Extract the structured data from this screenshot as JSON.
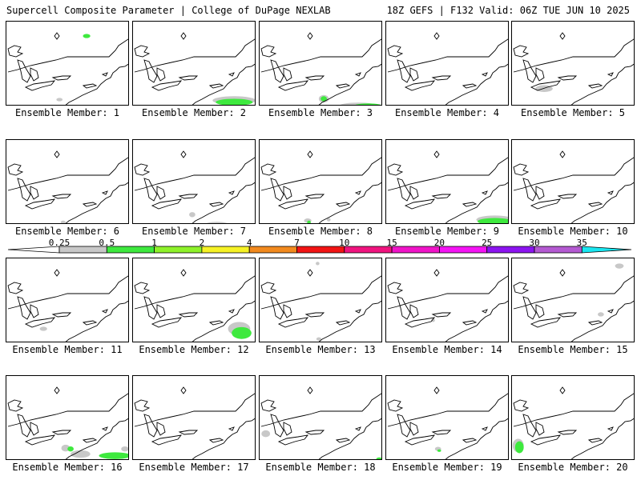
{
  "header": {
    "left": "Supercell Composite Parameter | College of DuPage NEXLAB",
    "right": "18Z GEFS | F132 Valid: 06Z TUE JUN 10 2025"
  },
  "legend": {
    "labels": [
      "0.25",
      "0.5",
      "1",
      "2",
      "4",
      "7",
      "10",
      "15",
      "20",
      "25",
      "30",
      "35"
    ],
    "colors": [
      "#c8c8c8",
      "#3ee93e",
      "#8ef22a",
      "#f6f225",
      "#f28a1e",
      "#f21414",
      "#f0147f",
      "#f014c8",
      "#f514f5",
      "#8c14f0",
      "#b45ad2",
      "#19e6f0"
    ]
  },
  "members": [
    {
      "caption": "Ensemble Member: 1",
      "blobs": [
        [
          "green",
          0.65,
          0.17,
          0.06,
          0.05
        ],
        [
          "gray",
          0.43,
          0.92,
          0.05,
          0.04
        ]
      ]
    },
    {
      "caption": "Ensemble Member: 2",
      "blobs": [
        [
          "gray",
          0.82,
          0.93,
          0.35,
          0.1
        ],
        [
          "green",
          0.82,
          0.95,
          0.3,
          0.08
        ]
      ]
    },
    {
      "caption": "Ensemble Member: 3",
      "blobs": [
        [
          "gray",
          0.52,
          0.91,
          0.08,
          0.09
        ],
        [
          "green",
          0.52,
          0.91,
          0.05,
          0.06
        ],
        [
          "gray",
          0.8,
          0.99,
          0.3,
          0.07
        ],
        [
          "green",
          0.88,
          0.99,
          0.22,
          0.05
        ]
      ]
    },
    {
      "caption": "Ensemble Member: 4",
      "blobs": []
    },
    {
      "caption": "Ensemble Member: 5",
      "blobs": [
        [
          "gray",
          0.26,
          0.79,
          0.14,
          0.08
        ]
      ]
    },
    {
      "caption": "Ensemble Member: 6",
      "blobs": [
        [
          "gray",
          0.46,
          0.97,
          0.04,
          0.04
        ]
      ]
    },
    {
      "caption": "Ensemble Member: 7",
      "blobs": [
        [
          "gray",
          0.48,
          0.88,
          0.05,
          0.06
        ],
        [
          "gray",
          0.68,
          0.99,
          0.18,
          0.05
        ]
      ]
    },
    {
      "caption": "Ensemble Member: 8",
      "blobs": [
        [
          "gray",
          0.39,
          0.95,
          0.06,
          0.05
        ],
        [
          "green",
          0.4,
          0.97,
          0.03,
          0.04
        ],
        [
          "gray",
          0.56,
          0.94,
          0.03,
          0.04
        ]
      ]
    },
    {
      "caption": "Ensemble Member: 9",
      "blobs": [
        [
          "gray",
          0.88,
          0.94,
          0.3,
          0.1
        ],
        [
          "green",
          0.88,
          0.96,
          0.28,
          0.08
        ]
      ]
    },
    {
      "caption": "Ensemble Member: 10",
      "blobs": []
    },
    {
      "caption": "Ensemble Member: 11",
      "blobs": [
        [
          "gray",
          0.3,
          0.83,
          0.06,
          0.05
        ]
      ]
    },
    {
      "caption": "Ensemble Member: 12",
      "blobs": [
        [
          "gray",
          0.86,
          0.83,
          0.18,
          0.16
        ],
        [
          "green",
          0.88,
          0.88,
          0.16,
          0.14
        ]
      ]
    },
    {
      "caption": "Ensemble Member: 13",
      "blobs": [
        [
          "gray",
          0.48,
          0.95,
          0.04,
          0.04
        ],
        [
          "gray",
          0.47,
          0.06,
          0.03,
          0.04
        ]
      ]
    },
    {
      "caption": "Ensemble Member: 14",
      "blobs": [
        [
          "gray",
          0.38,
          0.73,
          0.03,
          0.04
        ]
      ]
    },
    {
      "caption": "Ensemble Member: 15",
      "blobs": [
        [
          "gray",
          0.72,
          0.66,
          0.05,
          0.05
        ],
        [
          "gray",
          0.87,
          0.09,
          0.07,
          0.06
        ]
      ]
    },
    {
      "caption": "Ensemble Member: 16",
      "blobs": [
        [
          "gray",
          0.6,
          0.92,
          0.16,
          0.09
        ],
        [
          "gray",
          0.48,
          0.85,
          0.07,
          0.08
        ],
        [
          "green",
          0.52,
          0.86,
          0.05,
          0.06
        ],
        [
          "green",
          0.88,
          0.94,
          0.26,
          0.08
        ],
        [
          "gray",
          0.96,
          0.86,
          0.06,
          0.06
        ]
      ]
    },
    {
      "caption": "Ensemble Member: 17",
      "blobs": []
    },
    {
      "caption": "Ensemble Member: 18",
      "blobs": [
        [
          "green",
          0.05,
          0.68,
          0.05,
          0.06
        ],
        [
          "gray",
          0.05,
          0.68,
          0.07,
          0.08
        ],
        [
          "green",
          0.97,
          0.98,
          0.05,
          0.04
        ]
      ]
    },
    {
      "caption": "Ensemble Member: 19",
      "blobs": [
        [
          "gray",
          0.42,
          0.86,
          0.05,
          0.05
        ],
        [
          "green",
          0.43,
          0.88,
          0.03,
          0.03
        ]
      ]
    },
    {
      "caption": "Ensemble Member: 20",
      "blobs": [
        [
          "gray",
          0.05,
          0.82,
          0.09,
          0.16
        ],
        [
          "green",
          0.06,
          0.84,
          0.07,
          0.14
        ]
      ]
    }
  ]
}
